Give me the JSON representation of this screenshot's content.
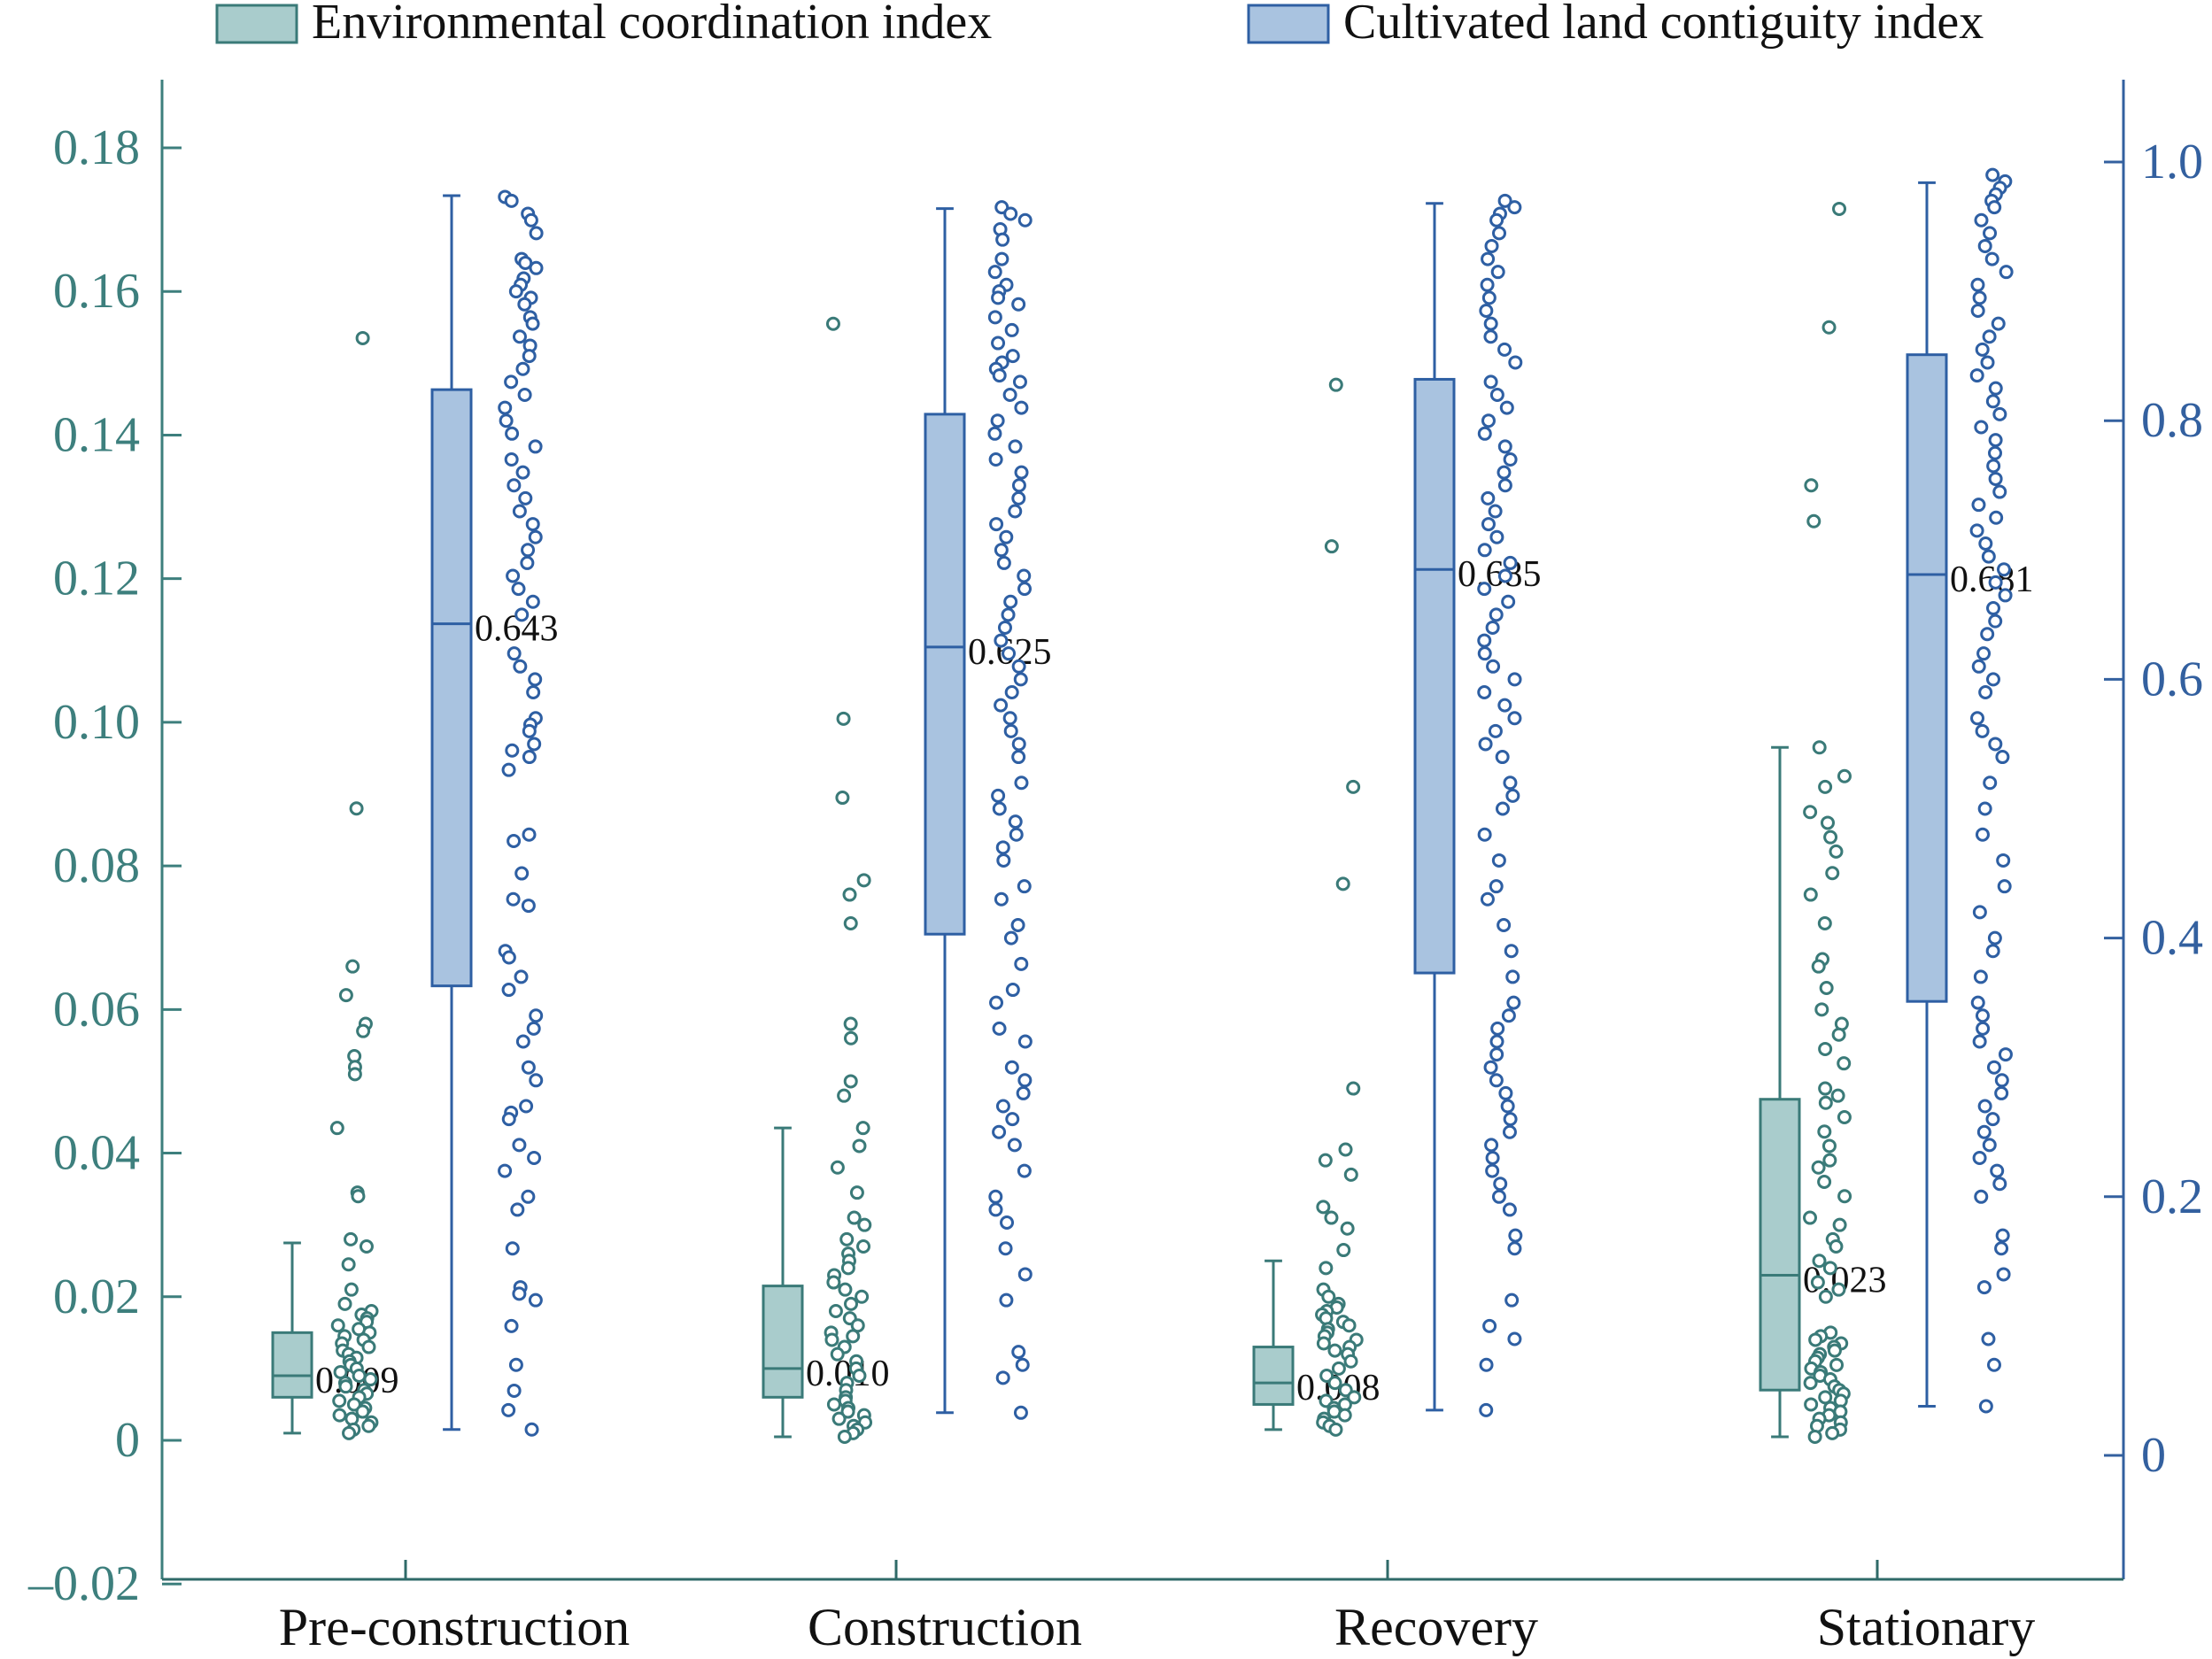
{
  "colors": {
    "env_stroke": "#3a7a78",
    "env_fill": "#a9cccc",
    "env_axis": "#3d7f7d",
    "cult_stroke": "#2e5fa3",
    "cult_fill": "#a9c3e0",
    "cult_axis": "#33609f",
    "axis_dark": "#2f6a68",
    "label_text": "#111111"
  },
  "chart_data": {
    "type": "box",
    "title": "",
    "xlabel": "",
    "categories": [
      "Pre-construction",
      "Construction",
      "Recovery",
      "Stationary"
    ],
    "legend": {
      "position": "top",
      "entries": [
        "Environmental coordination index",
        "Cultivated land contiguity index"
      ]
    },
    "grid": false,
    "axes": {
      "left": {
        "ylabel": "",
        "ylim": [
          -0.02,
          0.19
        ],
        "ticks": [
          -0.02,
          0,
          0.02,
          0.04,
          0.06,
          0.08,
          0.1,
          0.12,
          0.14,
          0.16,
          0.18
        ],
        "tick_labels": [
          "–0.02",
          "0",
          "0.02",
          "0.04",
          "0.06",
          "0.08",
          "0.10",
          "0.12",
          "0.14",
          "0.16",
          "0.18"
        ]
      },
      "right": {
        "ylabel": "",
        "ylim": [
          -0.1,
          1.1
        ],
        "ticks": [
          0,
          0.2,
          0.4,
          0.6,
          0.8,
          1.0
        ],
        "tick_labels": [
          "0",
          "0.2",
          "0.4",
          "0.6",
          "0.8",
          "1.0"
        ]
      }
    },
    "series": [
      {
        "name": "Environmental coordination index",
        "axis": "left",
        "boxes": [
          {
            "category": "Pre-construction",
            "whisker_low": 0.001,
            "q1": 0.006,
            "median": 0.009,
            "q3": 0.015,
            "whisker_high": 0.0275,
            "median_label": "0.009",
            "points": [
              0.1535,
              0.088,
              0.066,
              0.062,
              0.058,
              0.057,
              0.0535,
              0.052,
              0.051,
              0.0435,
              0.0345,
              0.034,
              0.028,
              0.027,
              0.0245,
              0.021,
              0.019,
              0.018,
              0.0175,
              0.017,
              0.0165,
              0.016,
              0.0155,
              0.015,
              0.0145,
              0.014,
              0.0135,
              0.013,
              0.0125,
              0.012,
              0.0115,
              0.011,
              0.0105,
              0.01,
              0.0095,
              0.009,
              0.0085,
              0.008,
              0.0075,
              0.007,
              0.0065,
              0.006,
              0.0055,
              0.005,
              0.0045,
              0.004,
              0.0035,
              0.003,
              0.0025,
              0.002,
              0.0015,
              0.001
            ]
          },
          {
            "category": "Construction",
            "whisker_low": 0.0005,
            "q1": 0.006,
            "median": 0.01,
            "q3": 0.0215,
            "whisker_high": 0.0435,
            "median_label": "0.010",
            "points": [
              0.1555,
              0.1005,
              0.0895,
              0.078,
              0.076,
              0.072,
              0.058,
              0.056,
              0.05,
              0.048,
              0.0435,
              0.041,
              0.038,
              0.0345,
              0.031,
              0.03,
              0.028,
              0.027,
              0.026,
              0.025,
              0.024,
              0.023,
              0.022,
              0.021,
              0.02,
              0.019,
              0.018,
              0.017,
              0.016,
              0.015,
              0.0145,
              0.014,
              0.013,
              0.012,
              0.011,
              0.01,
              0.009,
              0.008,
              0.007,
              0.006,
              0.0055,
              0.005,
              0.0045,
              0.004,
              0.0035,
              0.003,
              0.0025,
              0.002,
              0.0015,
              0.001,
              0.0005
            ]
          },
          {
            "category": "Recovery",
            "whisker_low": 0.0015,
            "q1": 0.005,
            "median": 0.008,
            "q3": 0.013,
            "whisker_high": 0.025,
            "median_label": "0.008",
            "points": [
              0.147,
              0.1245,
              0.091,
              0.0775,
              0.049,
              0.0405,
              0.039,
              0.037,
              0.0325,
              0.031,
              0.0295,
              0.0265,
              0.024,
              0.021,
              0.02,
              0.019,
              0.0185,
              0.018,
              0.0175,
              0.017,
              0.0165,
              0.016,
              0.0155,
              0.015,
              0.0145,
              0.014,
              0.0135,
              0.013,
              0.0125,
              0.012,
              0.011,
              0.01,
              0.009,
              0.008,
              0.007,
              0.006,
              0.0055,
              0.005,
              0.0045,
              0.004,
              0.0035,
              0.003,
              0.0025,
              0.002,
              0.0015
            ]
          },
          {
            "category": "Stationary",
            "whisker_low": 0.0005,
            "q1": 0.007,
            "median": 0.023,
            "q3": 0.0475,
            "whisker_high": 0.0965,
            "median_label": "0.023",
            "points": [
              0.1715,
              0.155,
              0.133,
              0.128,
              0.0965,
              0.0925,
              0.091,
              0.0875,
              0.086,
              0.084,
              0.082,
              0.079,
              0.076,
              0.072,
              0.067,
              0.066,
              0.063,
              0.06,
              0.058,
              0.0565,
              0.0545,
              0.0525,
              0.049,
              0.048,
              0.047,
              0.045,
              0.043,
              0.041,
              0.039,
              0.038,
              0.036,
              0.034,
              0.031,
              0.03,
              0.028,
              0.027,
              0.025,
              0.024,
              0.022,
              0.021,
              0.02,
              0.015,
              0.0145,
              0.014,
              0.0135,
              0.013,
              0.0125,
              0.012,
              0.0115,
              0.011,
              0.0105,
              0.01,
              0.0095,
              0.009,
              0.0085,
              0.008,
              0.0075,
              0.007,
              0.0065,
              0.006,
              0.0055,
              0.005,
              0.0045,
              0.004,
              0.0035,
              0.003,
              0.0025,
              0.002,
              0.0015,
              0.001,
              0.0005
            ]
          }
        ]
      },
      {
        "name": "Cultivated land contiguity index",
        "axis": "right",
        "boxes": [
          {
            "category": "Pre-construction",
            "whisker_low": 0.02,
            "q1": 0.363,
            "median": 0.643,
            "q3": 0.824,
            "whisker_high": 0.974,
            "median_label": "0.643",
            "points": [
              0.973,
              0.97,
              0.96,
              0.955,
              0.945,
              0.925,
              0.922,
              0.918,
              0.91,
              0.905,
              0.9,
              0.895,
              0.89,
              0.88,
              0.875,
              0.865,
              0.858,
              0.85,
              0.84,
              0.83,
              0.82,
              0.81,
              0.8,
              0.79,
              0.78,
              0.77,
              0.76,
              0.75,
              0.74,
              0.73,
              0.72,
              0.71,
              0.7,
              0.69,
              0.68,
              0.67,
              0.66,
              0.65,
              0.62,
              0.61,
              0.6,
              0.59,
              0.57,
              0.565,
              0.56,
              0.55,
              0.545,
              0.54,
              0.53,
              0.48,
              0.475,
              0.45,
              0.43,
              0.425,
              0.39,
              0.385,
              0.37,
              0.36,
              0.34,
              0.33,
              0.32,
              0.3,
              0.29,
              0.27,
              0.265,
              0.26,
              0.24,
              0.23,
              0.22,
              0.2,
              0.19,
              0.16,
              0.13,
              0.125,
              0.12,
              0.1,
              0.07,
              0.05,
              0.035,
              0.02
            ]
          },
          {
            "category": "Construction",
            "whisker_low": 0.033,
            "q1": 0.403,
            "median": 0.625,
            "q3": 0.805,
            "whisker_high": 0.964,
            "median_label": "0.625",
            "points": [
              0.965,
              0.96,
              0.955,
              0.948,
              0.94,
              0.925,
              0.915,
              0.905,
              0.9,
              0.895,
              0.89,
              0.88,
              0.87,
              0.86,
              0.85,
              0.845,
              0.84,
              0.835,
              0.83,
              0.82,
              0.81,
              0.8,
              0.79,
              0.78,
              0.77,
              0.76,
              0.75,
              0.74,
              0.73,
              0.72,
              0.71,
              0.7,
              0.69,
              0.68,
              0.67,
              0.66,
              0.65,
              0.64,
              0.63,
              0.62,
              0.61,
              0.6,
              0.59,
              0.58,
              0.57,
              0.56,
              0.55,
              0.54,
              0.52,
              0.51,
              0.5,
              0.49,
              0.48,
              0.47,
              0.46,
              0.44,
              0.43,
              0.41,
              0.4,
              0.38,
              0.36,
              0.35,
              0.33,
              0.32,
              0.3,
              0.29,
              0.28,
              0.27,
              0.26,
              0.25,
              0.24,
              0.22,
              0.2,
              0.19,
              0.18,
              0.16,
              0.14,
              0.12,
              0.08,
              0.07,
              0.06,
              0.033
            ]
          },
          {
            "category": "Recovery",
            "whisker_low": 0.035,
            "q1": 0.373,
            "median": 0.685,
            "q3": 0.832,
            "whisker_high": 0.968,
            "median_label": "0.685",
            "points": [
              0.97,
              0.965,
              0.96,
              0.955,
              0.945,
              0.935,
              0.925,
              0.915,
              0.905,
              0.895,
              0.885,
              0.875,
              0.865,
              0.855,
              0.845,
              0.83,
              0.82,
              0.81,
              0.8,
              0.79,
              0.78,
              0.77,
              0.76,
              0.75,
              0.74,
              0.73,
              0.72,
              0.71,
              0.7,
              0.69,
              0.68,
              0.67,
              0.66,
              0.65,
              0.64,
              0.63,
              0.62,
              0.61,
              0.6,
              0.59,
              0.58,
              0.57,
              0.56,
              0.55,
              0.54,
              0.52,
              0.51,
              0.5,
              0.48,
              0.46,
              0.44,
              0.43,
              0.41,
              0.39,
              0.37,
              0.35,
              0.34,
              0.33,
              0.32,
              0.31,
              0.3,
              0.29,
              0.28,
              0.27,
              0.26,
              0.25,
              0.24,
              0.23,
              0.22,
              0.21,
              0.2,
              0.19,
              0.17,
              0.16,
              0.12,
              0.1,
              0.09,
              0.07,
              0.035
            ]
          },
          {
            "category": "Stationary",
            "whisker_low": 0.038,
            "q1": 0.351,
            "median": 0.681,
            "q3": 0.851,
            "whisker_high": 0.984,
            "median_label": "0.681",
            "points": [
              0.99,
              0.985,
              0.98,
              0.975,
              0.97,
              0.965,
              0.955,
              0.945,
              0.935,
              0.925,
              0.915,
              0.905,
              0.895,
              0.885,
              0.875,
              0.865,
              0.855,
              0.845,
              0.835,
              0.825,
              0.815,
              0.805,
              0.795,
              0.785,
              0.775,
              0.765,
              0.755,
              0.745,
              0.735,
              0.725,
              0.715,
              0.705,
              0.695,
              0.685,
              0.675,
              0.665,
              0.655,
              0.645,
              0.635,
              0.62,
              0.61,
              0.6,
              0.59,
              0.57,
              0.56,
              0.55,
              0.54,
              0.52,
              0.5,
              0.48,
              0.46,
              0.44,
              0.42,
              0.4,
              0.39,
              0.37,
              0.35,
              0.34,
              0.33,
              0.32,
              0.31,
              0.3,
              0.29,
              0.28,
              0.27,
              0.26,
              0.25,
              0.24,
              0.23,
              0.22,
              0.21,
              0.2,
              0.17,
              0.16,
              0.14,
              0.13,
              0.09,
              0.07,
              0.038
            ]
          }
        ]
      }
    ]
  }
}
